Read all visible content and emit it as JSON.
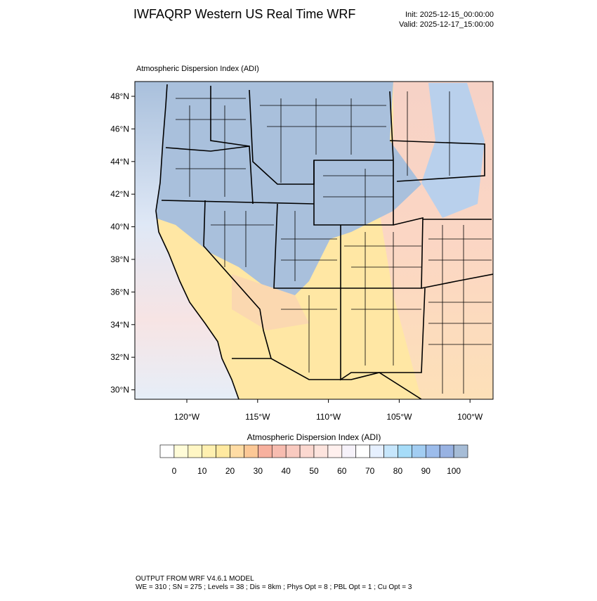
{
  "header": {
    "title": "IWFAQRP Western US Real Time WRF",
    "init": "Init: 2025-12-15_00:00:00",
    "valid": "Valid: 2025-12-17_15:00:00"
  },
  "map": {
    "title": "Atmospheric Dispersion Index   (ADI)",
    "lat_labels": [
      "48°N",
      "46°N",
      "44°N",
      "42°N",
      "40°N",
      "38°N",
      "36°N",
      "34°N",
      "32°N",
      "30°N"
    ],
    "lon_labels": [
      "120°W",
      "115°W",
      "110°W",
      "105°W",
      "100°W"
    ]
  },
  "colorbar": {
    "title": "Atmospheric Dispersion Index  (ADI)",
    "labels": [
      0,
      10,
      20,
      30,
      40,
      50,
      60,
      70,
      80,
      90,
      100
    ],
    "colors": [
      "#ffffff",
      "#fffcd8",
      "#fff6c4",
      "#fff0b0",
      "#ffe9a0",
      "#ffdca4",
      "#fcc896",
      "#f7b09e",
      "#f7bcb0",
      "#f9cac0",
      "#fbd8d0",
      "#fde4de",
      "#fff0ee",
      "#f6f2fa",
      "#ffffff",
      "#e6f0ff",
      "#c6e6fc",
      "#a6dcf8",
      "#a2cdf2",
      "#9cbceb",
      "#98b2e2",
      "#a6bcd6"
    ]
  },
  "footer": {
    "line1": "OUTPUT FROM WRF V4.6.1 MODEL",
    "line2": "WE = 310 ; SN = 275 ; Levels = 38 ; Dis = 8km ; Phys Opt = 8 ; PBL Opt = 1 ; Cu Opt = 3"
  }
}
